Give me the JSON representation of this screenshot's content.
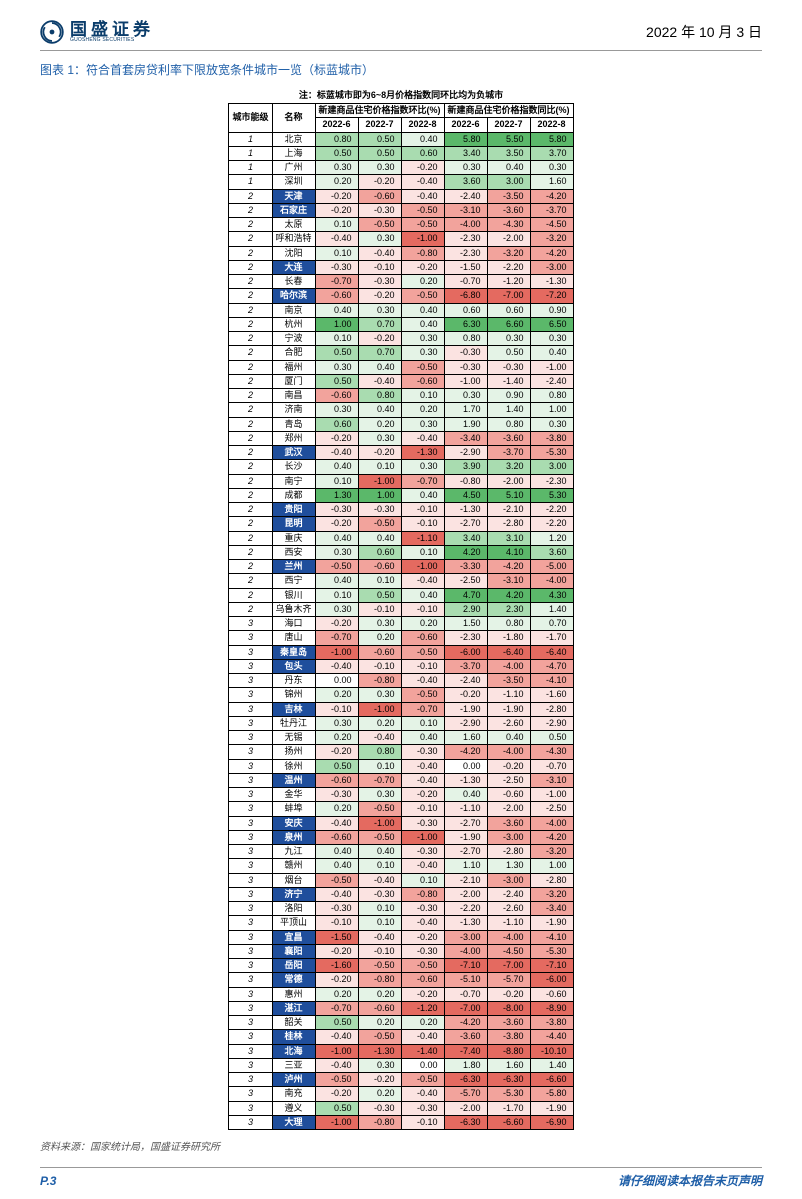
{
  "header": {
    "company_main": "国盛证券",
    "company_sub": "GUOSHENG SECURITIES",
    "date": "2022 年 10 月 3 日"
  },
  "chart_title": "图表 1：符合首套房贷利率下限放宽条件城市一览（标蓝城市）",
  "note": "注：标蓝城市即为6~8月价格指数同环比均为负城市",
  "table": {
    "col_headers": {
      "tier": "城市能级",
      "name": "名称",
      "group_mom": "新建商品住宅价格指数环比(%)",
      "group_yoy": "新建商品住宅价格指数同比(%)",
      "months": [
        "2022-6",
        "2022-7",
        "2022-8"
      ]
    },
    "color_scale": {
      "neg_strong": "#e46a60",
      "neg_mid": "#f2a39c",
      "neg_light": "#fbe3e1",
      "neutral": "#ffffff",
      "pos_light": "#e4f3e6",
      "pos_mid": "#a9dcb0",
      "pos_strong": "#5bb86a"
    },
    "rows": [
      {
        "tier": "1",
        "city": "北京",
        "hl": false,
        "mom": [
          0.8,
          0.5,
          0.4
        ],
        "yoy": [
          5.8,
          5.5,
          5.8
        ]
      },
      {
        "tier": "1",
        "city": "上海",
        "hl": false,
        "mom": [
          0.5,
          0.5,
          0.6
        ],
        "yoy": [
          3.4,
          3.5,
          3.7
        ]
      },
      {
        "tier": "1",
        "city": "广州",
        "hl": false,
        "mom": [
          0.3,
          0.3,
          -0.2
        ],
        "yoy": [
          0.3,
          0.4,
          0.3
        ]
      },
      {
        "tier": "1",
        "city": "深圳",
        "hl": false,
        "mom": [
          0.2,
          -0.2,
          -0.4
        ],
        "yoy": [
          3.6,
          3.0,
          1.6
        ]
      },
      {
        "tier": "2",
        "city": "天津",
        "hl": true,
        "mom": [
          -0.2,
          -0.6,
          -0.4
        ],
        "yoy": [
          -2.4,
          -3.5,
          -4.2
        ]
      },
      {
        "tier": "2",
        "city": "石家庄",
        "hl": true,
        "mom": [
          -0.2,
          -0.3,
          -0.5
        ],
        "yoy": [
          -3.1,
          -3.6,
          -3.7
        ]
      },
      {
        "tier": "2",
        "city": "太原",
        "hl": false,
        "mom": [
          0.1,
          -0.5,
          -0.5
        ],
        "yoy": [
          -4.0,
          -4.3,
          -4.5
        ]
      },
      {
        "tier": "2",
        "city": "呼和浩特",
        "hl": false,
        "mom": [
          -0.4,
          0.3,
          -1.0
        ],
        "yoy": [
          -2.3,
          -2.0,
          -3.2
        ]
      },
      {
        "tier": "2",
        "city": "沈阳",
        "hl": false,
        "mom": [
          0.1,
          -0.4,
          -0.8
        ],
        "yoy": [
          -2.3,
          -3.2,
          -4.2
        ]
      },
      {
        "tier": "2",
        "city": "大连",
        "hl": true,
        "mom": [
          -0.3,
          -0.1,
          -0.2
        ],
        "yoy": [
          -1.5,
          -2.2,
          -3.0
        ]
      },
      {
        "tier": "2",
        "city": "长春",
        "hl": false,
        "mom": [
          -0.7,
          -0.3,
          0.2
        ],
        "yoy": [
          -0.7,
          -1.2,
          -1.3
        ]
      },
      {
        "tier": "2",
        "city": "哈尔滨",
        "hl": true,
        "mom": [
          -0.6,
          -0.2,
          -0.5
        ],
        "yoy": [
          -6.8,
          -7.0,
          -7.2
        ]
      },
      {
        "tier": "2",
        "city": "南京",
        "hl": false,
        "mom": [
          0.4,
          0.3,
          0.4
        ],
        "yoy": [
          0.6,
          0.6,
          0.9
        ]
      },
      {
        "tier": "2",
        "city": "杭州",
        "hl": false,
        "mom": [
          1.0,
          0.7,
          0.4
        ],
        "yoy": [
          6.3,
          6.6,
          6.5
        ]
      },
      {
        "tier": "2",
        "city": "宁波",
        "hl": false,
        "mom": [
          0.1,
          -0.2,
          0.3
        ],
        "yoy": [
          0.8,
          0.3,
          0.3
        ]
      },
      {
        "tier": "2",
        "city": "合肥",
        "hl": false,
        "mom": [
          0.5,
          0.7,
          0.3
        ],
        "yoy": [
          -0.3,
          0.5,
          0.4
        ]
      },
      {
        "tier": "2",
        "city": "福州",
        "hl": false,
        "mom": [
          0.3,
          0.4,
          -0.5
        ],
        "yoy": [
          -0.3,
          -0.3,
          -1.0
        ]
      },
      {
        "tier": "2",
        "city": "厦门",
        "hl": false,
        "mom": [
          0.5,
          -0.4,
          -0.6
        ],
        "yoy": [
          -1.0,
          -1.4,
          -2.4
        ]
      },
      {
        "tier": "2",
        "city": "南昌",
        "hl": false,
        "mom": [
          -0.6,
          0.8,
          0.1
        ],
        "yoy": [
          0.3,
          0.9,
          0.8
        ]
      },
      {
        "tier": "2",
        "city": "济南",
        "hl": false,
        "mom": [
          0.3,
          0.4,
          0.2
        ],
        "yoy": [
          1.7,
          1.4,
          1.0
        ]
      },
      {
        "tier": "2",
        "city": "青岛",
        "hl": false,
        "mom": [
          0.6,
          0.2,
          0.3
        ],
        "yoy": [
          1.9,
          0.8,
          0.3
        ]
      },
      {
        "tier": "2",
        "city": "郑州",
        "hl": false,
        "mom": [
          -0.2,
          0.3,
          -0.4
        ],
        "yoy": [
          -3.4,
          -3.6,
          -3.8
        ]
      },
      {
        "tier": "2",
        "city": "武汉",
        "hl": true,
        "mom": [
          -0.4,
          -0.2,
          -1.3
        ],
        "yoy": [
          -2.9,
          -3.7,
          -5.3
        ]
      },
      {
        "tier": "2",
        "city": "长沙",
        "hl": false,
        "mom": [
          0.4,
          0.1,
          0.3
        ],
        "yoy": [
          3.9,
          3.2,
          3.0
        ]
      },
      {
        "tier": "2",
        "city": "南宁",
        "hl": false,
        "mom": [
          0.1,
          -1.0,
          -0.7
        ],
        "yoy": [
          -0.8,
          -2.0,
          -2.3
        ]
      },
      {
        "tier": "2",
        "city": "成都",
        "hl": false,
        "mom": [
          1.3,
          1.0,
          0.4
        ],
        "yoy": [
          4.5,
          5.1,
          5.3
        ]
      },
      {
        "tier": "2",
        "city": "贵阳",
        "hl": true,
        "mom": [
          -0.3,
          -0.3,
          -0.1
        ],
        "yoy": [
          -1.3,
          -2.1,
          -2.2
        ]
      },
      {
        "tier": "2",
        "city": "昆明",
        "hl": true,
        "mom": [
          -0.2,
          -0.5,
          -0.1
        ],
        "yoy": [
          -2.7,
          -2.8,
          -2.2
        ]
      },
      {
        "tier": "2",
        "city": "重庆",
        "hl": false,
        "mom": [
          0.4,
          0.4,
          -1.1
        ],
        "yoy": [
          3.4,
          3.1,
          1.2
        ]
      },
      {
        "tier": "2",
        "city": "西安",
        "hl": false,
        "mom": [
          0.3,
          0.6,
          0.1
        ],
        "yoy": [
          4.2,
          4.1,
          3.6
        ]
      },
      {
        "tier": "2",
        "city": "兰州",
        "hl": true,
        "mom": [
          -0.5,
          -0.6,
          -1.0
        ],
        "yoy": [
          -3.3,
          -4.2,
          -5.0
        ]
      },
      {
        "tier": "2",
        "city": "西宁",
        "hl": false,
        "mom": [
          0.4,
          0.1,
          -0.4
        ],
        "yoy": [
          -2.5,
          -3.1,
          -4.0
        ]
      },
      {
        "tier": "2",
        "city": "银川",
        "hl": false,
        "mom": [
          0.1,
          0.5,
          0.4
        ],
        "yoy": [
          4.7,
          4.2,
          4.3
        ]
      },
      {
        "tier": "2",
        "city": "乌鲁木齐",
        "hl": false,
        "mom": [
          0.3,
          -0.1,
          -0.1
        ],
        "yoy": [
          2.9,
          2.3,
          1.4
        ]
      },
      {
        "tier": "3",
        "city": "海口",
        "hl": false,
        "mom": [
          -0.2,
          0.3,
          0.2
        ],
        "yoy": [
          1.5,
          0.8,
          0.7
        ]
      },
      {
        "tier": "3",
        "city": "唐山",
        "hl": false,
        "mom": [
          -0.7,
          0.2,
          -0.6
        ],
        "yoy": [
          -2.3,
          -1.8,
          -1.7
        ]
      },
      {
        "tier": "3",
        "city": "秦皇岛",
        "hl": true,
        "mom": [
          -1.0,
          -0.6,
          -0.5
        ],
        "yoy": [
          -6.0,
          -6.4,
          -6.4
        ]
      },
      {
        "tier": "3",
        "city": "包头",
        "hl": true,
        "mom": [
          -0.4,
          -0.1,
          -0.1
        ],
        "yoy": [
          -3.7,
          -4.0,
          -4.7
        ]
      },
      {
        "tier": "3",
        "city": "丹东",
        "hl": false,
        "mom": [
          0.0,
          -0.8,
          -0.4
        ],
        "yoy": [
          -2.4,
          -3.5,
          -4.1
        ]
      },
      {
        "tier": "3",
        "city": "锦州",
        "hl": false,
        "mom": [
          0.2,
          0.3,
          -0.5
        ],
        "yoy": [
          -0.2,
          -1.1,
          -1.6
        ]
      },
      {
        "tier": "3",
        "city": "吉林",
        "hl": true,
        "mom": [
          -0.1,
          -1.0,
          -0.7
        ],
        "yoy": [
          -1.9,
          -1.9,
          -2.8
        ]
      },
      {
        "tier": "3",
        "city": "牡丹江",
        "hl": false,
        "mom": [
          0.3,
          0.2,
          0.1
        ],
        "yoy": [
          -2.9,
          -2.6,
          -2.9
        ]
      },
      {
        "tier": "3",
        "city": "无锡",
        "hl": false,
        "mom": [
          0.2,
          -0.4,
          0.4
        ],
        "yoy": [
          1.6,
          0.4,
          0.5
        ]
      },
      {
        "tier": "3",
        "city": "扬州",
        "hl": false,
        "mom": [
          -0.2,
          0.8,
          -0.3
        ],
        "yoy": [
          -4.2,
          -4.0,
          -4.3
        ]
      },
      {
        "tier": "3",
        "city": "徐州",
        "hl": false,
        "mom": [
          0.5,
          0.1,
          -0.4
        ],
        "yoy": [
          0.0,
          -0.2,
          -0.7
        ]
      },
      {
        "tier": "3",
        "city": "温州",
        "hl": true,
        "mom": [
          -0.6,
          -0.7,
          -0.4
        ],
        "yoy": [
          -1.3,
          -2.5,
          -3.1
        ]
      },
      {
        "tier": "3",
        "city": "金华",
        "hl": false,
        "mom": [
          -0.3,
          0.3,
          -0.2
        ],
        "yoy": [
          0.4,
          -0.6,
          -1.0
        ]
      },
      {
        "tier": "3",
        "city": "蚌埠",
        "hl": false,
        "mom": [
          0.2,
          -0.5,
          -0.1
        ],
        "yoy": [
          -1.1,
          -2.0,
          -2.5
        ]
      },
      {
        "tier": "3",
        "city": "安庆",
        "hl": true,
        "mom": [
          -0.4,
          -1.0,
          -0.3
        ],
        "yoy": [
          -2.7,
          -3.6,
          -4.0
        ]
      },
      {
        "tier": "3",
        "city": "泉州",
        "hl": true,
        "mom": [
          -0.6,
          -0.5,
          -1.0
        ],
        "yoy": [
          -1.9,
          -3.0,
          -4.2
        ]
      },
      {
        "tier": "3",
        "city": "九江",
        "hl": false,
        "mom": [
          0.4,
          0.4,
          -0.3
        ],
        "yoy": [
          -2.7,
          -2.8,
          -3.2
        ]
      },
      {
        "tier": "3",
        "city": "赣州",
        "hl": false,
        "mom": [
          0.4,
          0.1,
          -0.4
        ],
        "yoy": [
          1.1,
          1.3,
          1.0
        ]
      },
      {
        "tier": "3",
        "city": "烟台",
        "hl": false,
        "mom": [
          -0.5,
          -0.4,
          0.1
        ],
        "yoy": [
          -2.1,
          -3.0,
          -2.8
        ]
      },
      {
        "tier": "3",
        "city": "济宁",
        "hl": true,
        "mom": [
          -0.4,
          -0.3,
          -0.8
        ],
        "yoy": [
          -2.0,
          -2.4,
          -3.2
        ]
      },
      {
        "tier": "3",
        "city": "洛阳",
        "hl": false,
        "mom": [
          -0.3,
          0.1,
          -0.3
        ],
        "yoy": [
          -2.2,
          -2.6,
          -3.4
        ]
      },
      {
        "tier": "3",
        "city": "平顶山",
        "hl": false,
        "mom": [
          -0.1,
          0.1,
          -0.4
        ],
        "yoy": [
          -1.3,
          -1.1,
          -1.9
        ]
      },
      {
        "tier": "3",
        "city": "宜昌",
        "hl": true,
        "mom": [
          -1.5,
          -0.4,
          -0.2
        ],
        "yoy": [
          -3.0,
          -4.0,
          -4.1
        ]
      },
      {
        "tier": "3",
        "city": "襄阳",
        "hl": true,
        "mom": [
          -0.2,
          -0.1,
          -0.3
        ],
        "yoy": [
          -4.0,
          -4.5,
          -5.3
        ]
      },
      {
        "tier": "3",
        "city": "岳阳",
        "hl": true,
        "mom": [
          -1.6,
          -0.5,
          -0.5
        ],
        "yoy": [
          -7.1,
          -7.0,
          -7.1
        ]
      },
      {
        "tier": "3",
        "city": "常德",
        "hl": true,
        "mom": [
          -0.2,
          -0.8,
          -0.6
        ],
        "yoy": [
          -5.1,
          -5.7,
          -6.0
        ]
      },
      {
        "tier": "3",
        "city": "惠州",
        "hl": false,
        "mom": [
          0.2,
          0.2,
          -0.2
        ],
        "yoy": [
          -0.7,
          -0.2,
          -0.6
        ]
      },
      {
        "tier": "3",
        "city": "湛江",
        "hl": true,
        "mom": [
          -0.7,
          -0.6,
          -1.2
        ],
        "yoy": [
          -7.0,
          -8.0,
          -8.9
        ]
      },
      {
        "tier": "3",
        "city": "韶关",
        "hl": false,
        "mom": [
          0.5,
          0.2,
          0.2
        ],
        "yoy": [
          -4.2,
          -3.6,
          -3.8
        ]
      },
      {
        "tier": "3",
        "city": "桂林",
        "hl": true,
        "mom": [
          -0.4,
          -0.5,
          -0.4
        ],
        "yoy": [
          -3.6,
          -3.8,
          -4.4
        ]
      },
      {
        "tier": "3",
        "city": "北海",
        "hl": true,
        "mom": [
          -1.0,
          -1.3,
          -1.4
        ],
        "yoy": [
          -7.4,
          -8.8,
          -10.1
        ]
      },
      {
        "tier": "3",
        "city": "三亚",
        "hl": false,
        "mom": [
          -0.4,
          0.3,
          0.0
        ],
        "yoy": [
          1.8,
          1.6,
          1.4
        ]
      },
      {
        "tier": "3",
        "city": "泸州",
        "hl": true,
        "mom": [
          -0.5,
          -0.2,
          -0.5
        ],
        "yoy": [
          -6.3,
          -6.3,
          -6.6
        ]
      },
      {
        "tier": "3",
        "city": "南充",
        "hl": false,
        "mom": [
          -0.2,
          0.2,
          -0.4
        ],
        "yoy": [
          -5.7,
          -5.3,
          -5.8
        ]
      },
      {
        "tier": "3",
        "city": "遵义",
        "hl": false,
        "mom": [
          0.5,
          -0.3,
          -0.3
        ],
        "yoy": [
          -2.0,
          -1.7,
          -1.9
        ]
      },
      {
        "tier": "3",
        "city": "大理",
        "hl": true,
        "mom": [
          -1.0,
          -0.8,
          -0.1
        ],
        "yoy": [
          -6.3,
          -6.6,
          -6.9
        ]
      }
    ]
  },
  "source": "资料来源：国家统计局，国盛证券研究所",
  "footer": {
    "page": "P.3",
    "note": "请仔细阅读本报告末页声明"
  }
}
